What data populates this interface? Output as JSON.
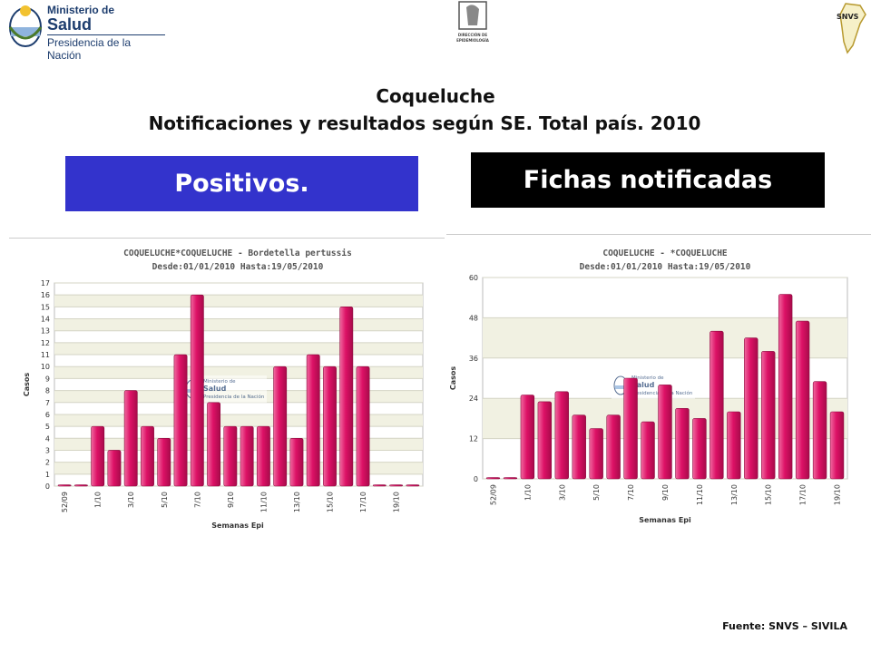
{
  "header": {
    "logo_left": {
      "line1": "Ministerio de",
      "line2": "Salud",
      "line3": "Presidencia de la Nación"
    },
    "logo_center": {
      "line1": "DIRECCIÓN DE",
      "line2": "EPIDEMIOLOGÍA"
    },
    "logo_right": {
      "text": "SNVS"
    }
  },
  "title": "Coqueluche",
  "subtitle": "Notificaciones y resultados según SE. Total país. 2010",
  "banners": {
    "left": "Positivos.",
    "right": "Fichas notificadas"
  },
  "source": "Fuente: SNVS – SIVILA",
  "colors": {
    "bar": "#dd1166",
    "banner_left": "#3333cc",
    "banner_right": "#000000",
    "chart_title": "#555555"
  },
  "chart_data": [
    {
      "type": "bar",
      "title": "COQUELUCHE*COQUELUCHE - Bordetella pertussis",
      "subtitle": "Desde:01/01/2010  Hasta:19/05/2010",
      "xlabel": "Semanas Epi",
      "ylabel": "Casos",
      "ylim": [
        0,
        17
      ],
      "yticks": [
        0,
        1,
        2,
        3,
        4,
        5,
        6,
        7,
        8,
        9,
        10,
        11,
        12,
        13,
        14,
        15,
        16,
        17
      ],
      "categories": [
        "52/09",
        "53/09",
        "1/10",
        "2/10",
        "3/10",
        "4/10",
        "5/10",
        "6/10",
        "7/10",
        "8/10",
        "9/10",
        "10/10",
        "11/10",
        "12/10",
        "13/10",
        "14/10",
        "15/10",
        "16/10",
        "17/10",
        "18/10",
        "19/10",
        "20/10"
      ],
      "xtick_labels": [
        "52/09",
        "1/10",
        "3/10",
        "5/10",
        "7/10",
        "9/10",
        "11/10",
        "13/10",
        "15/10",
        "17/10",
        "19/10"
      ],
      "values": [
        0,
        0,
        5,
        3,
        8,
        5,
        4,
        11,
        16,
        7,
        5,
        5,
        5,
        10,
        4,
        11,
        10,
        15,
        10,
        0,
        0,
        0
      ],
      "watermark": {
        "line1": "Ministerio de",
        "line2": "Salud",
        "line3": "Presidencia de la Nación"
      }
    },
    {
      "type": "bar",
      "title": "COQUELUCHE - *COQUELUCHE",
      "subtitle": "Desde:01/01/2010  Hasta:19/05/2010",
      "xlabel": "Semanas Epi",
      "ylabel": "Casos",
      "ylim": [
        0,
        60
      ],
      "yticks": [
        0,
        12,
        24,
        36,
        48,
        60
      ],
      "categories": [
        "52/09",
        "53/09",
        "1/10",
        "2/10",
        "3/10",
        "4/10",
        "5/10",
        "6/10",
        "7/10",
        "8/10",
        "9/10",
        "10/10",
        "11/10",
        "12/10",
        "13/10",
        "14/10",
        "15/10",
        "16/10",
        "17/10",
        "18/10",
        "19/10"
      ],
      "xtick_labels": [
        "52/09",
        "1/10",
        "3/10",
        "5/10",
        "7/10",
        "9/10",
        "11/10",
        "13/10",
        "15/10",
        "17/10",
        "19/10"
      ],
      "values": [
        0,
        0,
        25,
        23,
        26,
        19,
        15,
        19,
        30,
        17,
        28,
        21,
        18,
        44,
        20,
        42,
        38,
        55,
        47,
        29,
        20
      ],
      "watermark": {
        "line1": "Ministerio de",
        "line2": "Salud",
        "line3": "Presidencia de la Nación"
      }
    }
  ]
}
